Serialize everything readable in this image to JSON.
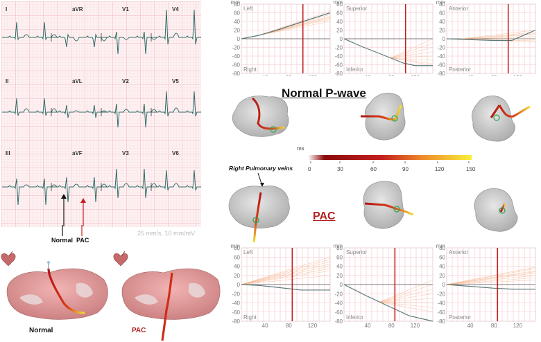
{
  "ecg": {
    "leads": [
      "I",
      "aVR",
      "V1",
      "V4",
      "II",
      "aVL",
      "V2",
      "V5",
      "III",
      "aVF",
      "V3",
      "V6"
    ],
    "speed_label": "25 mm/s, 10 mm/mV",
    "normal_arrow_label": "Normal",
    "pac_arrow_label": "PAC"
  },
  "plots": {
    "unit": "mm",
    "y_ticks": [
      "80",
      "60",
      "40",
      "20",
      "0",
      "-20",
      "-40",
      "-60",
      "-80"
    ],
    "x_ticks": [
      "40",
      "80",
      "120"
    ],
    "normal_row": [
      {
        "top_label": "Left",
        "bottom_label": "Right"
      },
      {
        "top_label": "Superior",
        "bottom_label": "Inferior"
      },
      {
        "top_label": "Anterior",
        "bottom_label": "Posterior"
      }
    ],
    "pac_row": [
      {
        "top_label": "Left",
        "bottom_label": "Right"
      },
      {
        "top_label": "Superior",
        "bottom_label": "Inferior"
      },
      {
        "top_label": "Anterior",
        "bottom_label": "Posterior"
      }
    ]
  },
  "titles": {
    "normal": "Normal P-wave",
    "pac": "PAC"
  },
  "colorbar": {
    "unit": "ms",
    "ticks": [
      "0",
      "30",
      "60",
      "90",
      "120",
      "150"
    ]
  },
  "annotations": {
    "rpv": "Right Pulmonary veins"
  },
  "bottom_models": {
    "normal_label": "Normal",
    "pac_label": "PAC"
  },
  "colors": {
    "grid_minor": "#f6cfd3",
    "grid_major": "#e9a3aa",
    "ecg_trace": "#2f6b66",
    "pathway_red": "#c41e1e",
    "pathway_yellow": "#e8d43a",
    "gray_line": "#5a7a7a",
    "orange_lines": "#f2a877"
  }
}
